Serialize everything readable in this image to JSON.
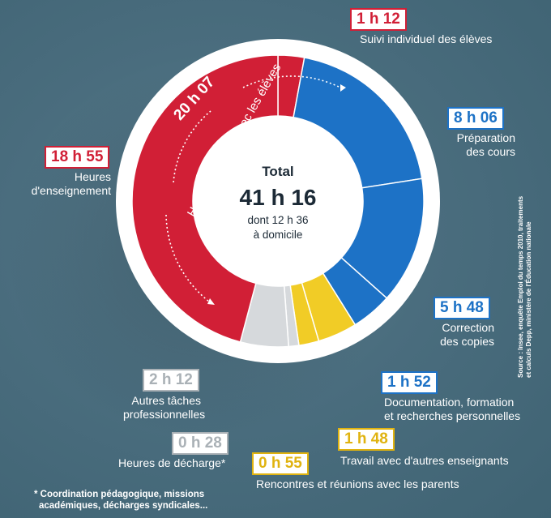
{
  "chart_data": {
    "type": "pie",
    "center": {
      "title": "Total",
      "total": "41 h 16",
      "sub1": "dont 12 h 36",
      "sub2": "à domicile"
    },
    "inner_label": {
      "value": "20 h 07",
      "text": "Heures passées avec les élèves"
    },
    "slices": [
      {
        "key": "suivi",
        "value_label": "1 h 12",
        "minutes": 72,
        "label": "Suivi individuel des élèves",
        "color": "#d11f36"
      },
      {
        "key": "preparation",
        "value_label": "8 h 06",
        "minutes": 486,
        "label": "Préparation des cours",
        "color": "#1d72c6"
      },
      {
        "key": "correction",
        "value_label": "5 h 48",
        "minutes": 348,
        "label": "Correction des copies",
        "color": "#1d72c6"
      },
      {
        "key": "documentation",
        "value_label": "1 h 52",
        "minutes": 112,
        "label": "Documentation, formation et recherches personnelles",
        "color": "#1d72c6"
      },
      {
        "key": "travail",
        "value_label": "1 h 48",
        "minutes": 108,
        "label": "Travail avec d'autres enseignants",
        "color": "#f1cc26"
      },
      {
        "key": "rencontres",
        "value_label": "0 h 55",
        "minutes": 55,
        "label": "Rencontres et réunions avec les parents",
        "color": "#f1cc26"
      },
      {
        "key": "decharge",
        "value_label": "0 h 28",
        "minutes": 28,
        "label": "Heures de décharge*",
        "color": "#d6d9dc"
      },
      {
        "key": "autres",
        "value_label": "2 h 12",
        "minutes": 132,
        "label": "Autres tâches professionnelles",
        "color": "#d6d9dc"
      },
      {
        "key": "enseignement",
        "value_label": "18 h 55",
        "minutes": 1135,
        "label": "Heures d'enseignement",
        "color": "#d11f36"
      }
    ],
    "footnote_lines": [
      "* Coordination pédagogique, missions",
      "académiques, décharges syndicales..."
    ],
    "source_lines": [
      "Source : Insee, enquête Emploi du temps 2010, traitements",
      "et calculs Depp, ministère de l'Éducation nationale"
    ]
  },
  "colors": {
    "red": "#d11f36",
    "blue": "#1d72c6",
    "yellow": "#f1cc26",
    "grey": "#d6d9dc",
    "dark_text": "#1c2a36"
  }
}
